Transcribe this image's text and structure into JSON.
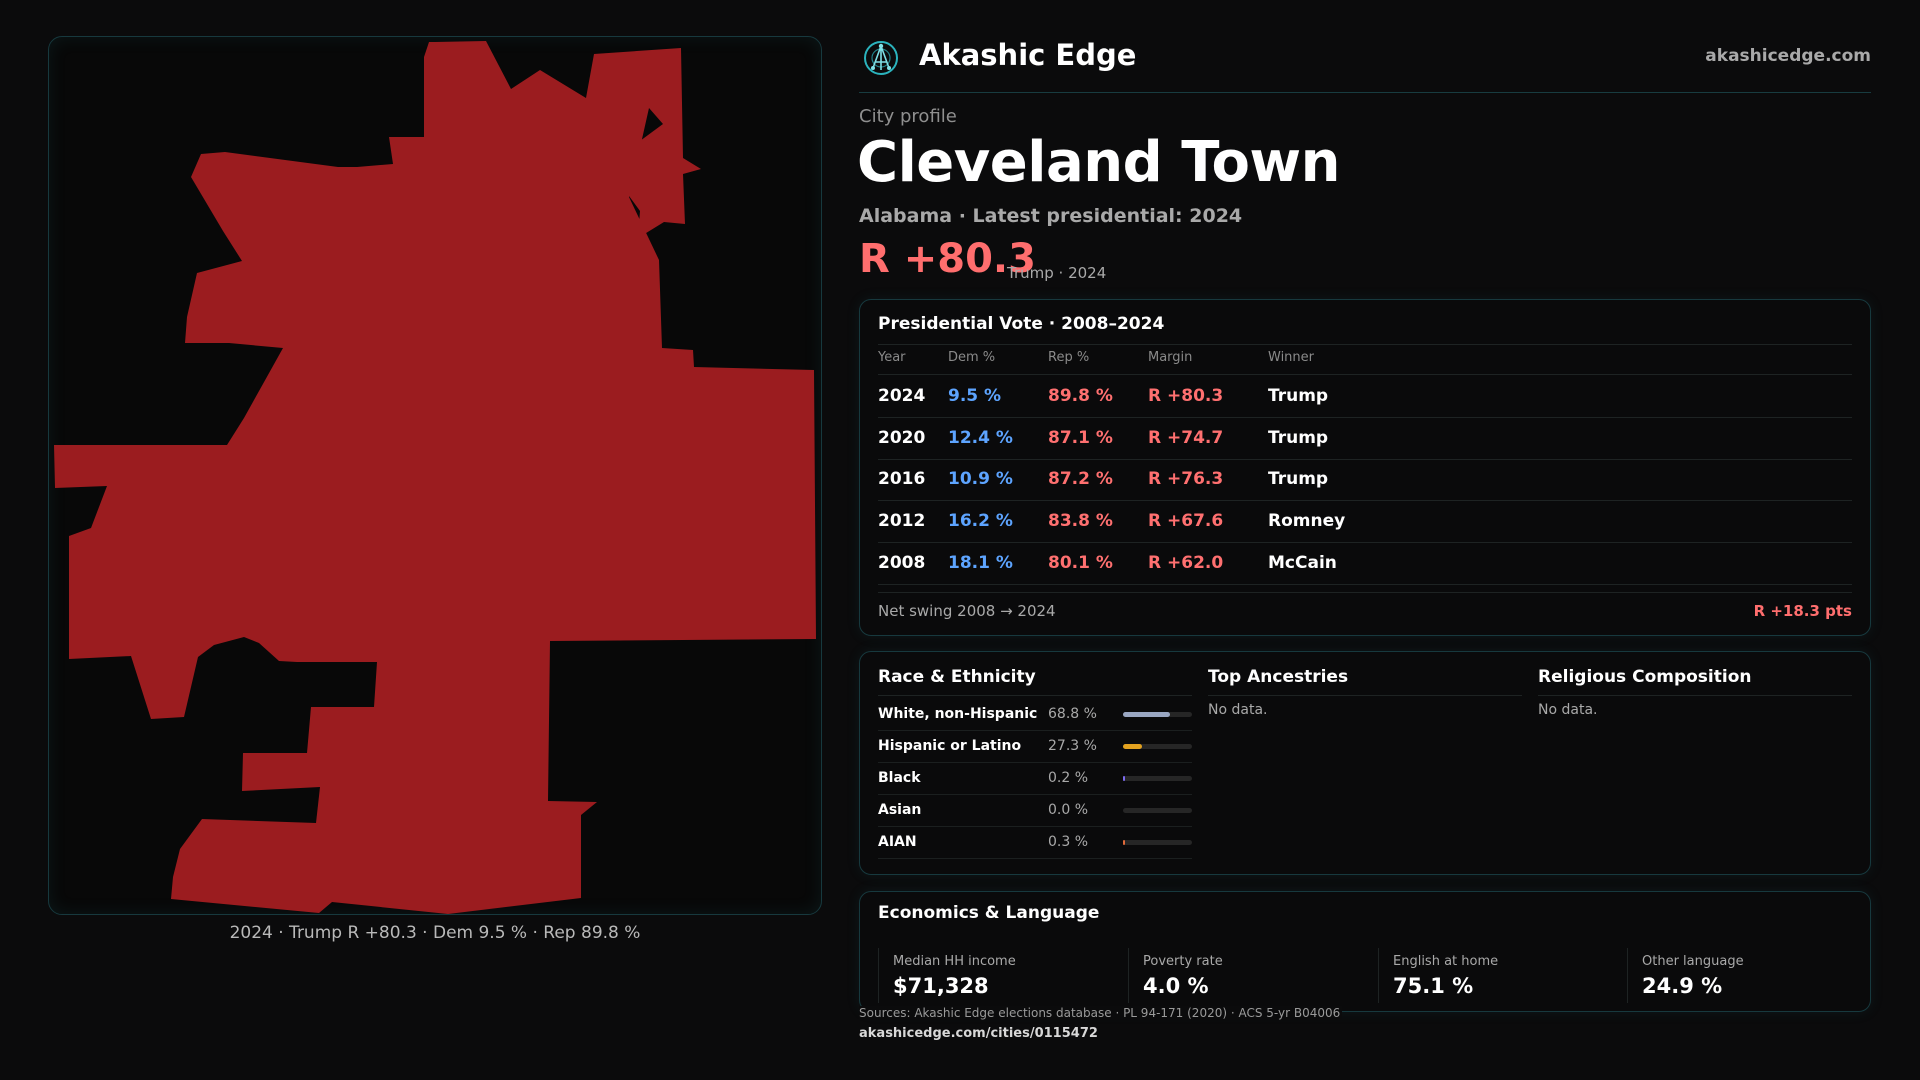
{
  "brand": {
    "name": "Akashic Edge",
    "site": "akashicedge.com",
    "logo_icon": "network-node-icon",
    "accent": "#2bb3bd"
  },
  "profile": {
    "kicker": "City profile",
    "city": "Cleveland Town",
    "subline": "Alabama · Latest presidential: 2024",
    "margin": "R +80.3",
    "margin_note": "Trump · 2024",
    "rep_color": "#9b1c1f"
  },
  "map": {
    "caption": "2024 · Trump R +80.3 · Dem 9.5 % · Rep 89.8 %"
  },
  "presidential": {
    "title": "Presidential Vote · 2008–2024",
    "headers": {
      "year": "Year",
      "dem": "Dem %",
      "rep": "Rep %",
      "margin": "Margin",
      "winner": "Winner"
    },
    "rows": [
      {
        "year": "2024",
        "dem": "9.5 %",
        "rep": "89.8 %",
        "margin": "R +80.3",
        "winner": "Trump"
      },
      {
        "year": "2020",
        "dem": "12.4 %",
        "rep": "87.1 %",
        "margin": "R +74.7",
        "winner": "Trump"
      },
      {
        "year": "2016",
        "dem": "10.9 %",
        "rep": "87.2 %",
        "margin": "R +76.3",
        "winner": "Trump"
      },
      {
        "year": "2012",
        "dem": "16.2 %",
        "rep": "83.8 %",
        "margin": "R +67.6",
        "winner": "Romney"
      },
      {
        "year": "2008",
        "dem": "18.1 %",
        "rep": "80.1 %",
        "margin": "R +62.0",
        "winner": "McCain"
      }
    ],
    "swing_label": "Net swing 2008 → 2024",
    "swing_value": "R +18.3 pts"
  },
  "race": {
    "title": "Race & Ethnicity",
    "items": [
      {
        "name": "White, non-Hispanic",
        "pct": "68.8 %",
        "value": 0.688,
        "color": "#9aa7c2"
      },
      {
        "name": "Hispanic or Latino",
        "pct": "27.3 %",
        "value": 0.273,
        "color": "#e3a21f"
      },
      {
        "name": "Black",
        "pct": "0.2 %",
        "value": 0.002,
        "color": "#7c6cf0"
      },
      {
        "name": "Asian",
        "pct": "0.0 %",
        "value": 0.0,
        "color": "#2bb3bd"
      },
      {
        "name": "AIAN",
        "pct": "0.3 %",
        "value": 0.003,
        "color": "#e06a3a"
      }
    ]
  },
  "ancestry": {
    "title": "Top Ancestries",
    "empty": "No data."
  },
  "religion": {
    "title": "Religious Composition",
    "empty": "No data."
  },
  "economics": {
    "title": "Economics & Language",
    "stats": [
      {
        "label": "Median HH income",
        "value": "$71,328"
      },
      {
        "label": "Poverty rate",
        "value": "4.0 %"
      },
      {
        "label": "English at home",
        "value": "75.1 %"
      },
      {
        "label": "Other language",
        "value": "24.9 %"
      }
    ]
  },
  "footer": {
    "sources": "Sources: Akashic Edge elections database · PL 94-171 (2020) · ACS 5-yr B04006",
    "url": "akashicedge.com/cities/0115472"
  }
}
